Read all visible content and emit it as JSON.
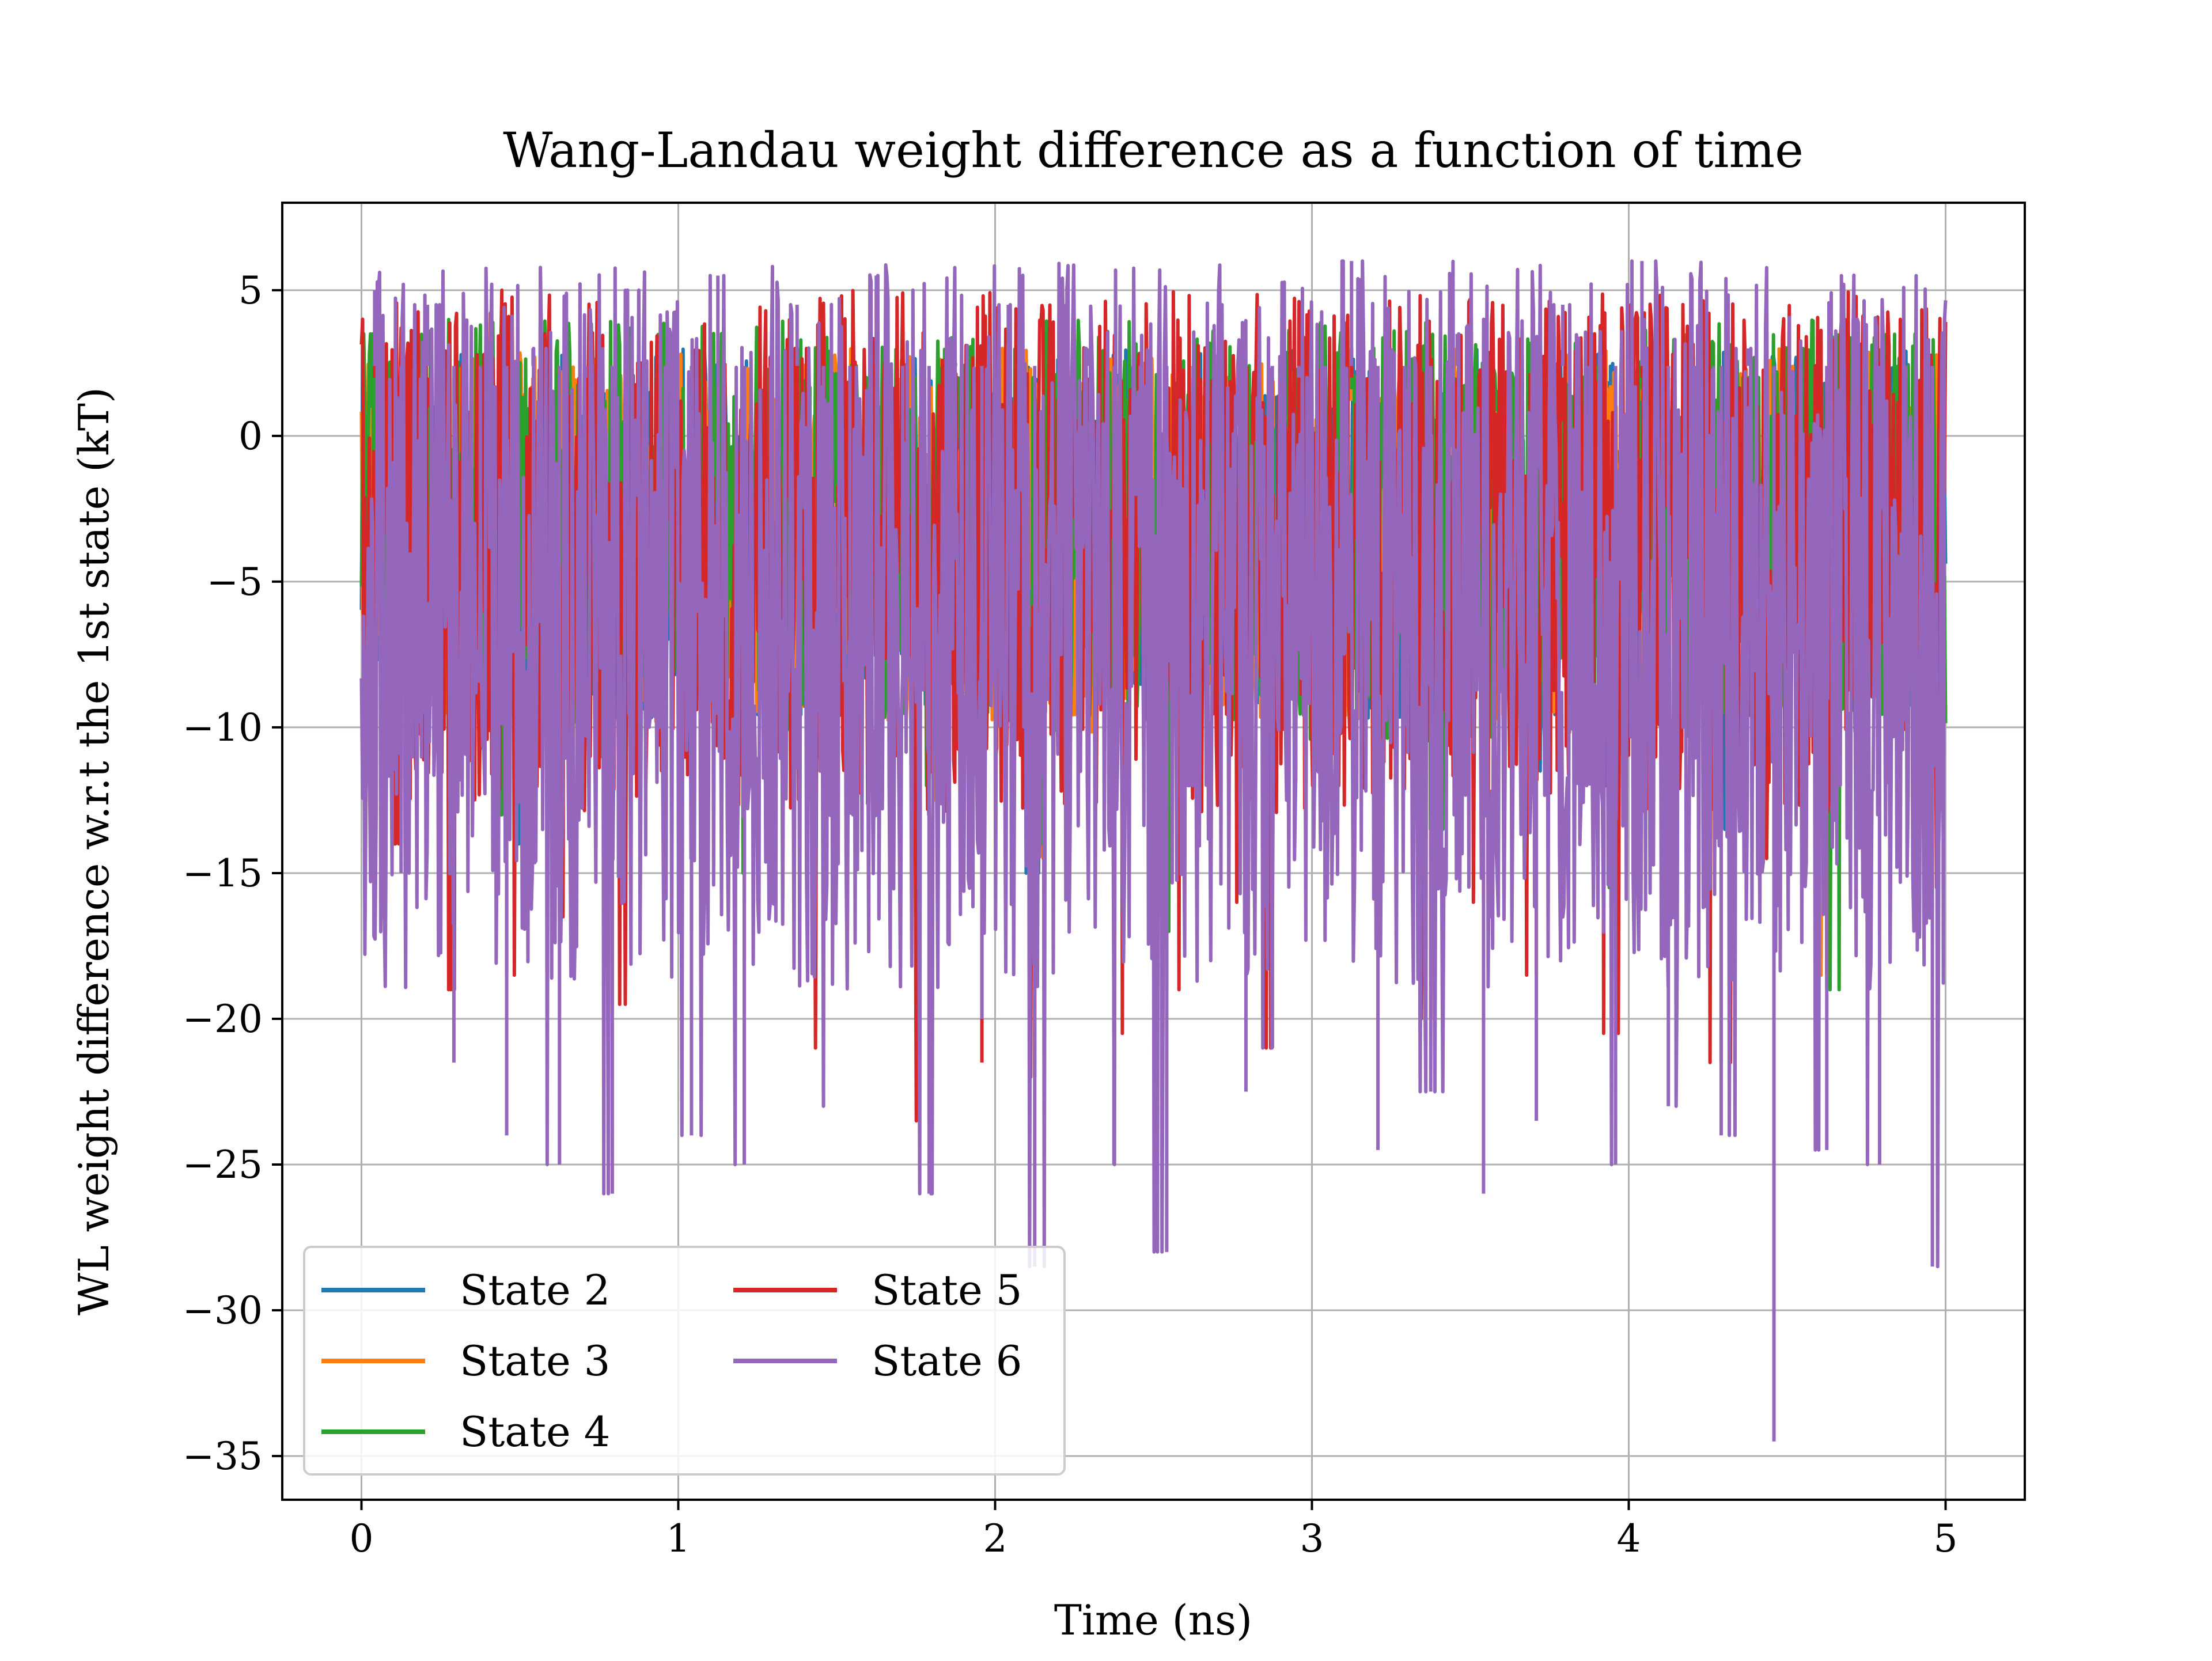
{
  "chart_data": {
    "type": "line",
    "title": "Wang-Landau weight difference as a function of time",
    "xlabel": "Time (ns)",
    "ylabel": "WL weight difference w.r.t the 1st state (kT)",
    "xlim": [
      -0.25,
      5.25
    ],
    "ylim": [
      -36.5,
      8.0
    ],
    "xticks": [
      0,
      1,
      2,
      3,
      4,
      5
    ],
    "xtick_labels": [
      "0",
      "1",
      "2",
      "3",
      "4",
      "5"
    ],
    "yticks": [
      5,
      0,
      -5,
      -10,
      -15,
      -20,
      -25,
      -30,
      -35
    ],
    "ytick_labels": [
      "5",
      "0",
      "−5",
      "−10",
      "−15",
      "−20",
      "−25",
      "−30",
      "−35"
    ],
    "grid": true,
    "legend": {
      "placement": "lower-left",
      "columns": 2
    },
    "x_range": [
      0,
      5
    ],
    "series": [
      {
        "name": "State 2",
        "color": "#1f77b4",
        "y_min": -18.0,
        "y_max": 3.0,
        "values": [
          2.5,
          -6.0,
          1.0,
          -10.0,
          -3.0,
          -14.0,
          0.5,
          -8.0,
          -2.0,
          -12.0,
          1.5,
          -5.0,
          -9.0,
          0.0,
          -16.0,
          -4.0,
          2.0,
          -11.0,
          -6.5,
          1.0,
          -3.5,
          -13.0,
          -1.0,
          -7.5,
          3.0,
          -15.0,
          -4.5,
          0.5,
          -9.5,
          -2.5,
          -18.0,
          -5.5,
          1.5,
          -8.5,
          -12.5,
          -0.5,
          -6.0,
          2.0,
          -10.5,
          -3.0,
          -14.5,
          1.0,
          -7.0,
          -1.5,
          -11.5,
          0.0,
          -5.0,
          -16.5,
          2.5,
          -9.0,
          -4.0,
          -13.5,
          1.0,
          -6.5,
          -2.0,
          -17.0,
          0.5,
          -8.0,
          -3.5,
          -10.0
        ]
      },
      {
        "name": "State 3",
        "color": "#ff7f0e",
        "y_min": -18.5,
        "y_max": 3.0,
        "values": [
          3.0,
          -5.5,
          1.5,
          -9.5,
          -2.5,
          -13.5,
          1.0,
          -7.5,
          -1.5,
          -11.5,
          2.0,
          -4.5,
          -8.5,
          0.5,
          -15.5,
          -3.5,
          2.5,
          -10.5,
          -6.0,
          1.5,
          -3.0,
          -12.5,
          -0.5,
          -7.0,
          3.0,
          -14.5,
          -4.0,
          1.0,
          -9.0,
          -2.0,
          -17.5,
          -5.0,
          2.0,
          -8.0,
          -12.0,
          0.0,
          -5.5,
          2.5,
          -10.0,
          -2.5,
          -14.0,
          1.5,
          -6.5,
          -1.0,
          -11.0,
          0.5,
          -4.5,
          -16.0,
          3.0,
          -8.5,
          -3.5,
          -13.0,
          1.5,
          -6.0,
          -1.5,
          -18.5,
          1.0,
          -7.5,
          -3.0,
          -9.5
        ]
      },
      {
        "name": "State 4",
        "color": "#2ca02c",
        "y_min": -19.0,
        "y_max": 4.0,
        "values": [
          3.5,
          -5.0,
          2.0,
          -9.0,
          -2.0,
          -13.0,
          1.5,
          -7.0,
          -1.0,
          -11.0,
          2.5,
          -4.0,
          -8.0,
          1.0,
          -15.0,
          -3.0,
          3.0,
          -10.0,
          -5.5,
          2.0,
          -2.5,
          -12.0,
          0.0,
          -6.5,
          3.5,
          -14.0,
          -3.5,
          1.5,
          -8.5,
          -1.5,
          -17.0,
          -4.5,
          2.5,
          -7.5,
          -11.5,
          0.5,
          -5.0,
          3.0,
          -9.5,
          -2.0,
          -13.5,
          2.0,
          -6.0,
          -0.5,
          -10.5,
          1.0,
          -4.0,
          -15.5,
          3.5,
          -8.0,
          -3.0,
          -12.5,
          2.0,
          -5.5,
          -1.0,
          -19.0,
          1.5,
          -7.0,
          -2.5,
          -9.0
        ]
      },
      {
        "name": "State 5",
        "color": "#d62728",
        "y_min": -23.5,
        "y_max": 5.0,
        "values": [
          4.0,
          -14.0,
          1.0,
          -19.0,
          -6.0,
          -18.5,
          0.5,
          -16.5,
          -2.0,
          -19.5,
          2.5,
          -9.0,
          -17.0,
          0.0,
          -18.0,
          -5.5,
          3.0,
          -21.0,
          -10.5,
          5.0,
          -6.0,
          -23.5,
          -1.0,
          -21.5,
          3.5,
          -22.0,
          -9.0,
          0.5,
          -20.5,
          -3.0,
          -19.0,
          -11.0,
          2.0,
          -16.0,
          -21.0,
          -0.5,
          -12.0,
          3.0,
          -17.5,
          -6.5,
          -20.0,
          1.5,
          -16.0,
          -3.0,
          -18.5,
          0.5,
          -9.5,
          -20.5,
          4.0,
          -17.0,
          -6.0,
          -21.5,
          1.0,
          -14.5,
          -2.5,
          -18.5,
          4.0,
          -17.0,
          -6.5,
          -15.5
        ]
      },
      {
        "name": "State 6",
        "color": "#9467bd",
        "y_min": -34.5,
        "y_max": 6.0,
        "values": [
          5.0,
          -15.0,
          4.5,
          -21.5,
          -3.0,
          -24.0,
          3.0,
          -25.0,
          2.0,
          -26.0,
          5.0,
          -10.0,
          -24.0,
          5.5,
          -25.0,
          -4.0,
          4.5,
          -23.0,
          -13.0,
          5.5,
          -8.0,
          -26.0,
          2.5,
          -20.0,
          4.5,
          -28.5,
          -7.5,
          3.0,
          -25.0,
          -2.0,
          -28.0,
          -12.0,
          4.5,
          -22.5,
          -21.0,
          2.0,
          -16.0,
          6.0,
          -24.5,
          -6.0,
          -22.5,
          3.5,
          -26.0,
          -2.0,
          -23.5,
          4.5,
          -12.0,
          -25.0,
          6.0,
          -23.0,
          -10.0,
          -24.0,
          3.0,
          -34.5,
          -2.0,
          -24.5,
          4.0,
          -25.0,
          -7.0,
          -28.5
        ]
      }
    ]
  }
}
